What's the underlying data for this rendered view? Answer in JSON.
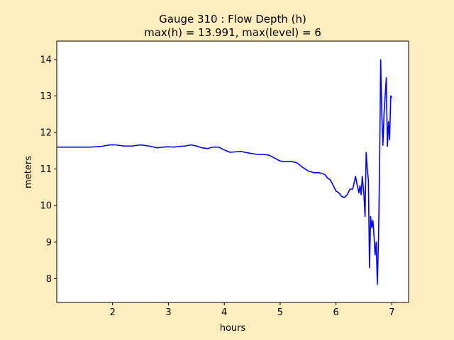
{
  "chart_data": {
    "type": "line",
    "title": "Gauge 310 : Flow Depth (h)",
    "subtitle": "max(h) =  13.991,    max(level) = 6",
    "xlabel": "hours",
    "ylabel": "meters",
    "xlim": [
      1.0,
      7.3
    ],
    "ylim": [
      7.35,
      14.5
    ],
    "xticks": [
      2,
      3,
      4,
      5,
      6,
      7
    ],
    "yticks": [
      8,
      9,
      10,
      11,
      12,
      13,
      14
    ],
    "grid": false,
    "legend": "none",
    "series": [
      {
        "color": "#0000ff",
        "x": [
          1.0,
          1.3,
          1.6,
          1.8,
          1.95,
          2.05,
          2.2,
          2.35,
          2.5,
          2.65,
          2.8,
          2.9,
          3.0,
          3.1,
          3.2,
          3.3,
          3.4,
          3.5,
          3.6,
          3.7,
          3.8,
          3.9,
          4.0,
          4.1,
          4.2,
          4.3,
          4.4,
          4.5,
          4.6,
          4.7,
          4.8,
          4.9,
          5.0,
          5.1,
          5.2,
          5.3,
          5.4,
          5.5,
          5.6,
          5.7,
          5.8,
          5.85,
          5.9,
          5.95,
          6.0,
          6.05,
          6.1,
          6.15,
          6.2,
          6.25,
          6.3,
          6.35,
          6.38,
          6.41,
          6.43,
          6.45,
          6.47,
          6.5,
          6.52,
          6.54,
          6.56,
          6.58,
          6.6,
          6.62,
          6.64,
          6.66,
          6.68,
          6.7,
          6.72,
          6.74,
          6.76,
          6.78,
          6.8,
          6.82,
          6.84,
          6.86,
          6.88,
          6.9,
          6.92,
          6.94,
          6.96,
          6.98,
          7.0
        ],
        "y": [
          11.6,
          11.6,
          11.6,
          11.62,
          11.66,
          11.66,
          11.63,
          11.63,
          11.66,
          11.63,
          11.58,
          11.6,
          11.61,
          11.6,
          11.62,
          11.63,
          11.66,
          11.63,
          11.58,
          11.56,
          11.6,
          11.6,
          11.52,
          11.46,
          11.47,
          11.48,
          11.45,
          11.42,
          11.4,
          11.4,
          11.38,
          11.3,
          11.22,
          11.2,
          11.21,
          11.17,
          11.05,
          10.95,
          10.9,
          10.9,
          10.85,
          10.75,
          10.7,
          10.55,
          10.4,
          10.35,
          10.25,
          10.22,
          10.3,
          10.45,
          10.45,
          10.8,
          10.55,
          10.35,
          10.55,
          10.3,
          10.8,
          10.3,
          9.7,
          11.45,
          11.0,
          10.7,
          8.3,
          9.7,
          9.4,
          9.6,
          9.2,
          8.65,
          9.0,
          7.85,
          9.0,
          11.0,
          13.99,
          12.5,
          11.65,
          12.5,
          13.0,
          13.5,
          11.62,
          12.3,
          11.8,
          13.0,
          12.95
        ]
      }
    ]
  }
}
